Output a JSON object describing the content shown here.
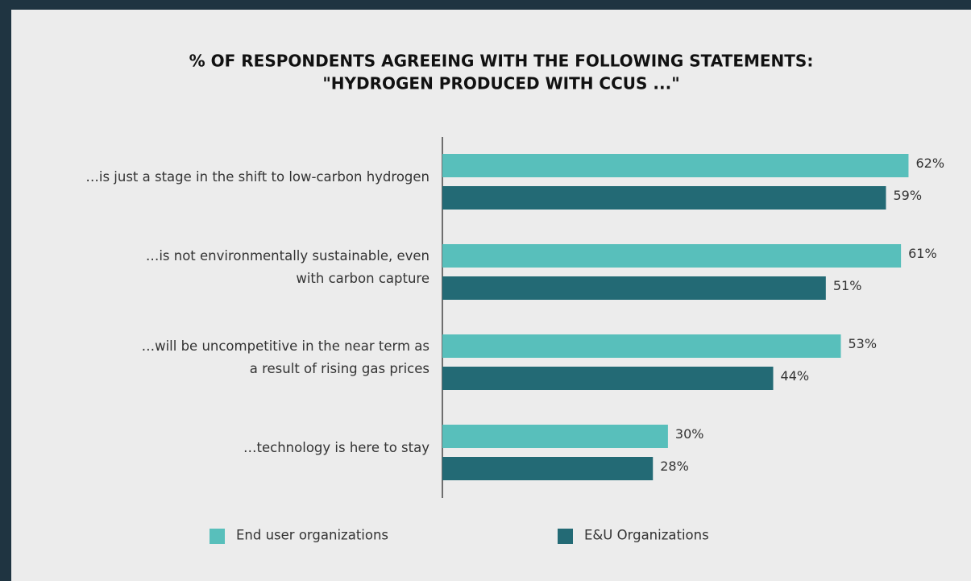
{
  "chart_data": {
    "type": "bar",
    "orientation": "horizontal",
    "title": [
      "% OF RESPONDENTS AGREEING WITH THE FOLLOWING STATEMENTS:",
      "\"HYDROGEN PRODUCED WITH CCUS ...\""
    ],
    "categories": [
      [
        "…is just a stage in the shift to low-carbon hydrogen"
      ],
      [
        "…is not environmentally sustainable, even",
        "with carbon capture"
      ],
      [
        "…will be uncompetitive in the near term as",
        "a result of rising gas prices"
      ],
      [
        "…technology is here to stay"
      ]
    ],
    "series": [
      {
        "name": "End user organizations",
        "color": "#58bfbb",
        "values": [
          62,
          61,
          53,
          30
        ],
        "value_labels": [
          "62%",
          "61%",
          "53%",
          "30%"
        ]
      },
      {
        "name": "E&U Organizations",
        "color": "#236a75",
        "values": [
          59,
          51,
          44,
          28
        ],
        "value_labels": [
          "59%",
          "51%",
          "44%",
          "28%"
        ]
      }
    ],
    "xlim": [
      0,
      100
    ]
  }
}
